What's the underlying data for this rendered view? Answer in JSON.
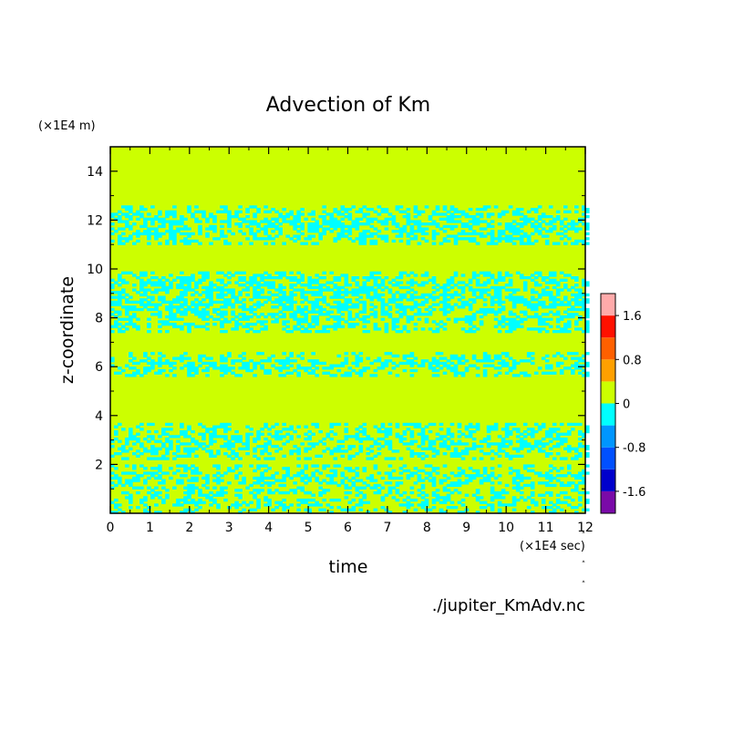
{
  "chart_data": {
    "type": "heatmap",
    "title": "Advection of Km",
    "xlabel": "time",
    "ylabel": "z-coordinate",
    "x_unit": "(×1E4 sec)",
    "y_unit": "(×1E4 m)",
    "source_label": "./jupiter_KmAdv.nc",
    "xlim": [
      0,
      12
    ],
    "ylim": [
      0,
      15
    ],
    "x_ticks": [
      0,
      1,
      2,
      3,
      4,
      5,
      6,
      7,
      8,
      9,
      10,
      11,
      12
    ],
    "y_ticks": [
      2,
      4,
      6,
      8,
      10,
      12,
      14
    ],
    "colorbar": {
      "levels": [
        -2.0,
        -1.6,
        -1.2,
        -0.8,
        -0.4,
        0,
        0.4,
        0.8,
        1.2,
        1.6,
        2.0
      ],
      "tick_labels": [
        "-1.6",
        "-0.8",
        "0",
        "0.8",
        "1.6"
      ],
      "tick_values": [
        -1.6,
        -0.8,
        0,
        0.8,
        1.6
      ],
      "colors": [
        "#7a0aa8",
        "#0000cc",
        "#0050ff",
        "#0096ff",
        "#00ffff",
        "#ccff00",
        "#ffa000",
        "#ff6000",
        "#ff1000",
        "#ffaaaa"
      ]
    },
    "background_value": 0.2,
    "negative_value": -0.2,
    "negative_bands": [
      {
        "z_range": [
          11.0,
          12.5
        ],
        "t_range": [
          0,
          12
        ],
        "density": 0.5,
        "note_level": -0.2
      },
      {
        "z_range": [
          7.4,
          9.8
        ],
        "t_range": [
          0,
          12
        ],
        "density": 0.55,
        "note_level": -0.2
      },
      {
        "z_range": [
          5.6,
          6.5
        ],
        "t_range": [
          0,
          12
        ],
        "density": 0.45,
        "note_level": -0.2
      },
      {
        "z_range": [
          2.2,
          3.7
        ],
        "t_range": [
          0,
          12
        ],
        "density": 0.45,
        "note_level": -0.2
      },
      {
        "z_range": [
          0.8,
          2.0
        ],
        "t_range": [
          0,
          12
        ],
        "density": 0.4,
        "note_level": -0.2
      },
      {
        "z_range": [
          0.0,
          0.8
        ],
        "t_range": [
          0,
          12
        ],
        "density": 0.35,
        "note_level": -0.2
      }
    ]
  }
}
